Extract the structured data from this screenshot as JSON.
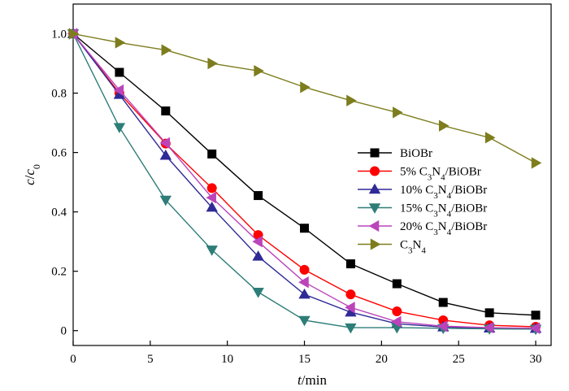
{
  "chart_data": {
    "type": "line",
    "xlabel": {
      "italic": "t",
      "rest": "/min"
    },
    "ylabel": {
      "italic_main": "c",
      "slash": "/",
      "italic_sub": "c",
      "subscript": "0"
    },
    "xlim": [
      0,
      31
    ],
    "ylim": [
      -0.05,
      1.1
    ],
    "xticks": [
      0,
      5,
      10,
      15,
      20,
      25,
      30
    ],
    "xtick_labels": [
      "0",
      "5",
      "10",
      "15",
      "20",
      "25",
      "30"
    ],
    "yticks": [
      0,
      0.2,
      0.4,
      0.6,
      0.8,
      1.0
    ],
    "ytick_labels": [
      "0",
      "0.2",
      "0.4",
      "0.6",
      "0.8",
      "1.0"
    ],
    "grid": false,
    "legend_position": "right",
    "x": [
      0,
      3,
      6,
      9,
      12,
      15,
      18,
      21,
      24,
      27,
      30
    ],
    "series": [
      {
        "name": "BiOBr",
        "label_parts": [
          [
            "BiOBr",
            "n"
          ]
        ],
        "color": "#000000",
        "marker": "square",
        "values": [
          1.0,
          0.87,
          0.74,
          0.595,
          0.455,
          0.345,
          0.225,
          0.158,
          0.095,
          0.06,
          0.052
        ]
      },
      {
        "name": "5% C3N4/BiOBr",
        "label_parts": [
          [
            "5%  C",
            "n"
          ],
          [
            "3",
            "s"
          ],
          [
            "N",
            "n"
          ],
          [
            "4",
            "s"
          ],
          [
            "/BiOBr",
            "n"
          ]
        ],
        "color": "#ff0000",
        "marker": "circle",
        "values": [
          1.0,
          0.8,
          0.63,
          0.48,
          0.322,
          0.205,
          0.122,
          0.065,
          0.035,
          0.018,
          0.013
        ]
      },
      {
        "name": "10% C3N4/BiOBr",
        "label_parts": [
          [
            "10%  C",
            "n"
          ],
          [
            "3",
            "s"
          ],
          [
            "N",
            "n"
          ],
          [
            "4",
            "s"
          ],
          [
            "/BiOBr",
            "n"
          ]
        ],
        "color": "#2f2a96",
        "marker": "triangle-up",
        "values": [
          1.0,
          0.795,
          0.59,
          0.415,
          0.25,
          0.122,
          0.062,
          0.023,
          0.012,
          0.008,
          0.007
        ]
      },
      {
        "name": "15% C3N4/BiOBr",
        "label_parts": [
          [
            "15%  C",
            "n"
          ],
          [
            "3",
            "s"
          ],
          [
            "N",
            "n"
          ],
          [
            "4",
            "s"
          ],
          [
            "/BiOBr",
            "n"
          ]
        ],
        "color": "#2e7d78",
        "marker": "triangle-down",
        "values": [
          1.0,
          0.685,
          0.44,
          0.272,
          0.13,
          0.035,
          0.01,
          0.01,
          0.008,
          0.006,
          0.005
        ]
      },
      {
        "name": "20% C3N4/BiOBr",
        "label_parts": [
          [
            "20%  C",
            "n"
          ],
          [
            "3",
            "s"
          ],
          [
            "N",
            "n"
          ],
          [
            "4",
            "s"
          ],
          [
            "/BiOBr",
            "n"
          ]
        ],
        "color": "#bb44bb",
        "marker": "triangle-left",
        "values": [
          1.0,
          0.81,
          0.632,
          0.448,
          0.3,
          0.163,
          0.078,
          0.03,
          0.015,
          0.01,
          0.008
        ]
      },
      {
        "name": "C3N4",
        "label_parts": [
          [
            "C",
            "n"
          ],
          [
            "3",
            "s"
          ],
          [
            "N",
            "n"
          ],
          [
            "4",
            "s"
          ]
        ],
        "color": "#7d7d1e",
        "marker": "triangle-right",
        "values": [
          1.0,
          0.97,
          0.945,
          0.9,
          0.875,
          0.82,
          0.775,
          0.735,
          0.69,
          0.65,
          0.565
        ]
      }
    ]
  }
}
